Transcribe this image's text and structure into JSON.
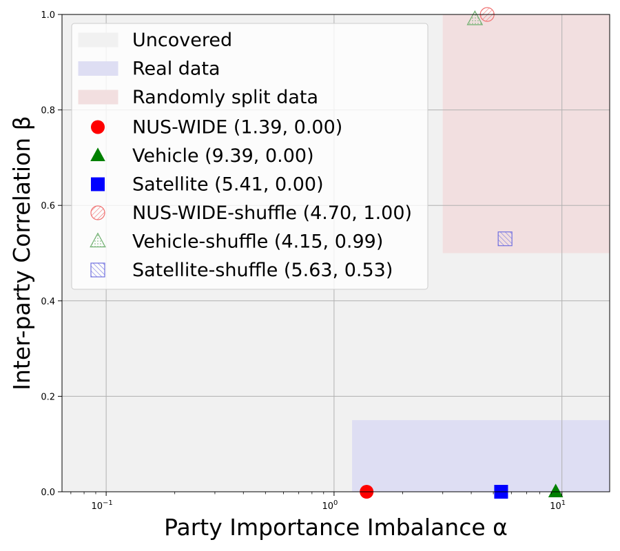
{
  "chart_data": {
    "type": "scatter",
    "title": "",
    "xlabel": "Party Importance Imbalance α",
    "ylabel": "Inter-party Correlation β",
    "xscale": "log",
    "xlim": [
      0.064,
      16.2
    ],
    "ylim": [
      0.0,
      1.0
    ],
    "grid": true,
    "legend_position": "upper-left",
    "x_ticks": [
      {
        "value": 0.1,
        "base": "10",
        "exp": "−1"
      },
      {
        "value": 1,
        "base": "10",
        "exp": "0"
      },
      {
        "value": 10,
        "base": "10",
        "exp": "1"
      }
    ],
    "y_ticks": [
      {
        "value": 0.0,
        "label": "0.0"
      },
      {
        "value": 0.2,
        "label": "0.2"
      },
      {
        "value": 0.4,
        "label": "0.4"
      },
      {
        "value": 0.6,
        "label": "0.6"
      },
      {
        "value": 0.8,
        "label": "0.8"
      },
      {
        "value": 1.0,
        "label": "1.0"
      }
    ],
    "regions": [
      {
        "name": "Uncovered",
        "x": [
          0.064,
          16.2
        ],
        "y": [
          0.0,
          1.0
        ],
        "color": "#f1f1f1"
      },
      {
        "name": "Real data",
        "x": [
          1.2,
          16.2
        ],
        "y": [
          0.0,
          0.15
        ],
        "color": "#dedef3"
      },
      {
        "name": "Randomly split data",
        "x": [
          3.0,
          16.2
        ],
        "y": [
          0.5,
          1.0
        ],
        "color": "#f2dfe0"
      }
    ],
    "series": [
      {
        "name": "NUS-WIDE (1.39, 0.00)",
        "x": 1.39,
        "y": 0.0,
        "marker": "circle",
        "color": "#ff0000",
        "style": "filled"
      },
      {
        "name": "Vehicle (9.39, 0.00)",
        "x": 9.39,
        "y": 0.0,
        "marker": "triangle",
        "color": "#008000",
        "style": "filled"
      },
      {
        "name": "Satellite (5.41, 0.00)",
        "x": 5.41,
        "y": 0.0,
        "marker": "square",
        "color": "#0000ff",
        "style": "filled"
      },
      {
        "name": "NUS-WIDE-shuffle (4.70, 1.00)",
        "x": 4.7,
        "y": 1.0,
        "marker": "circle",
        "color": "#f07070",
        "style": "hatch-diagonal"
      },
      {
        "name": "Vehicle-shuffle (4.15, 0.99)",
        "x": 4.15,
        "y": 0.99,
        "marker": "triangle",
        "color": "#70b070",
        "style": "dots"
      },
      {
        "name": "Satellite-shuffle (5.63, 0.53)",
        "x": 5.63,
        "y": 0.53,
        "marker": "square",
        "color": "#7070e0",
        "style": "hatch-backslash"
      }
    ]
  }
}
